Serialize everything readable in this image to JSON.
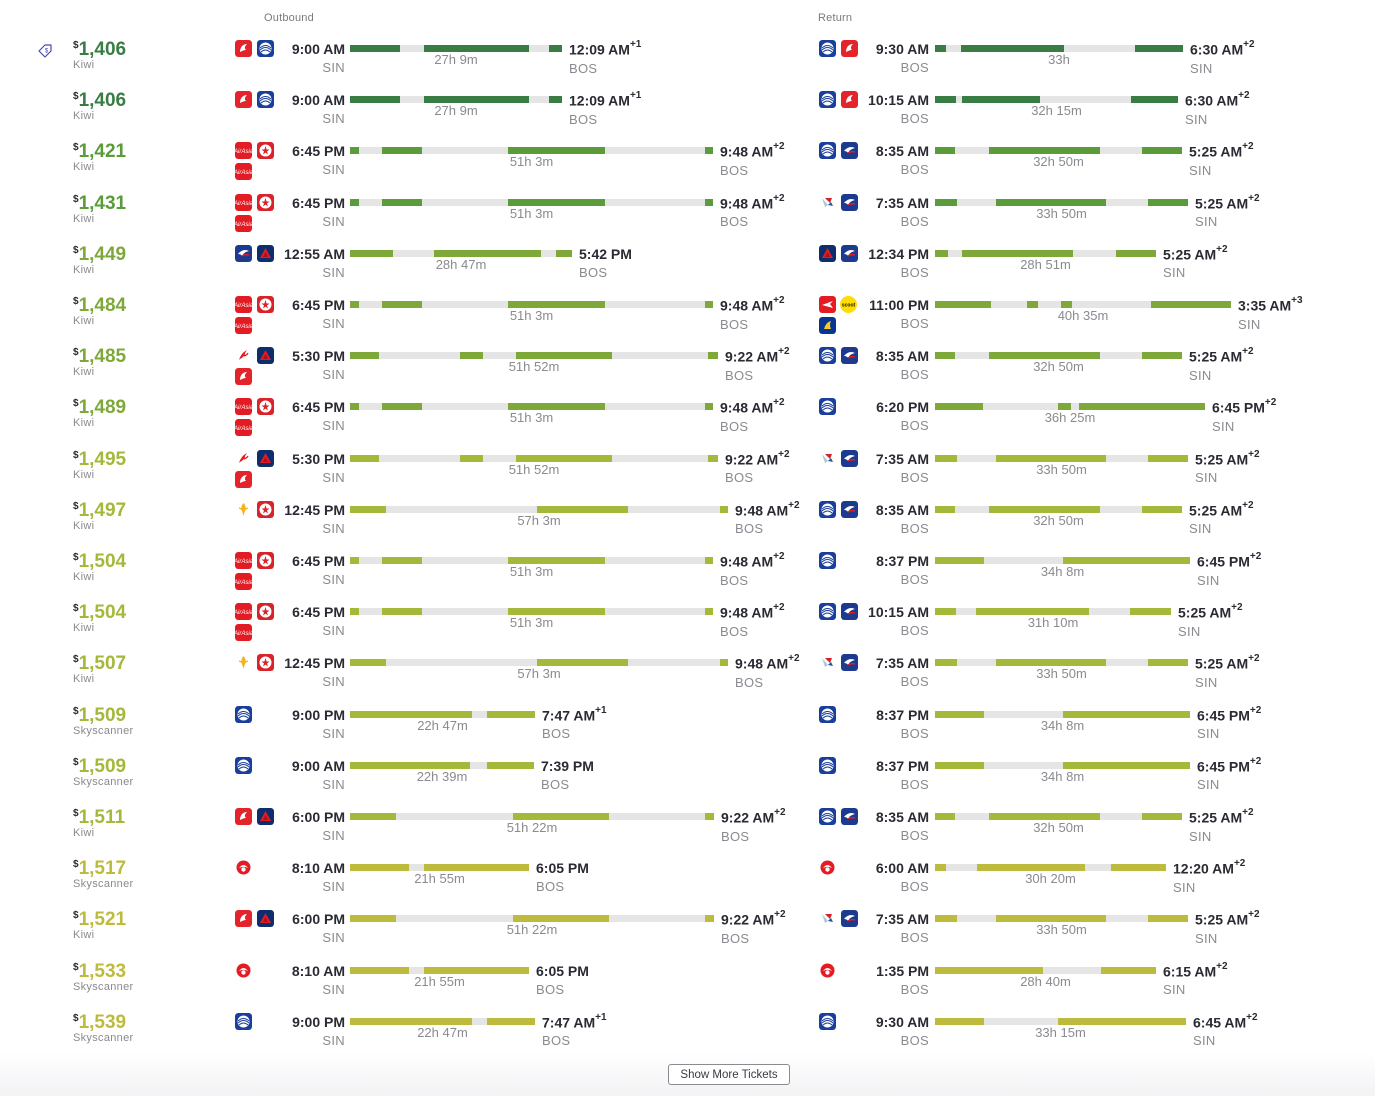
{
  "headers": {
    "outbound": "Outbound",
    "return": "Return"
  },
  "show_more_label": "Show More Tickets",
  "colors": {
    "best": "#3a7d44",
    "good1": "#5a9b3a",
    "good2": "#7ea83a",
    "ok": "#a6b83a",
    "fair": "#bdbb3d",
    "track": "#e5e5e6"
  },
  "rows": [
    {
      "currency": "$",
      "amount": "1,406",
      "provider": "Kiwi",
      "color": "best",
      "deal_icon": true,
      "out": {
        "logos": [
          "air-china",
          "united"
        ],
        "dep": "9:00 AM",
        "from": "SIN",
        "arr": "12:09 AM",
        "plus": "+1",
        "to": "BOS",
        "dur": "27h 9m"
      },
      "ret": {
        "logos": [
          "united",
          "air-china"
        ],
        "dep": "9:30 AM",
        "from": "BOS",
        "arr": "6:30 AM",
        "plus": "+2",
        "to": "SIN",
        "dur": "33h"
      }
    },
    {
      "currency": "$",
      "amount": "1,406",
      "provider": "Kiwi",
      "color": "best",
      "out": {
        "logos": [
          "air-china",
          "united"
        ],
        "dep": "9:00 AM",
        "from": "SIN",
        "arr": "12:09 AM",
        "plus": "+1",
        "to": "BOS",
        "dur": "27h 9m"
      },
      "ret": {
        "logos": [
          "united",
          "air-china"
        ],
        "dep": "10:15 AM",
        "from": "BOS",
        "arr": "6:30 AM",
        "plus": "+2",
        "to": "SIN",
        "dur": "32h 15m"
      }
    },
    {
      "currency": "$",
      "amount": "1,421",
      "provider": "Kiwi",
      "color": "good1",
      "out": {
        "logos": [
          "airasia",
          "air-canada",
          "airasia"
        ],
        "dep": "6:45 PM",
        "from": "SIN",
        "arr": "9:48 AM",
        "plus": "+2",
        "to": "BOS",
        "dur": "51h 3m"
      },
      "ret": {
        "logos": [
          "united",
          "china-eastern"
        ],
        "dep": "8:35 AM",
        "from": "BOS",
        "arr": "5:25 AM",
        "plus": "+2",
        "to": "SIN",
        "dur": "32h 50m"
      }
    },
    {
      "currency": "$",
      "amount": "1,431",
      "provider": "Kiwi",
      "color": "good1",
      "out": {
        "logos": [
          "airasia",
          "air-canada",
          "airasia"
        ],
        "dep": "6:45 PM",
        "from": "SIN",
        "arr": "9:48 AM",
        "plus": "+2",
        "to": "BOS",
        "dur": "51h 3m"
      },
      "ret": {
        "logos": [
          "american",
          "china-eastern"
        ],
        "dep": "7:35 AM",
        "from": "BOS",
        "arr": "5:25 AM",
        "plus": "+2",
        "to": "SIN",
        "dur": "33h 50m"
      }
    },
    {
      "currency": "$",
      "amount": "1,449",
      "provider": "Kiwi",
      "color": "good2",
      "out": {
        "logos": [
          "china-eastern",
          "delta"
        ],
        "dep": "12:55 AM",
        "from": "SIN",
        "arr": "5:42 PM",
        "plus": "",
        "to": "BOS",
        "dur": "28h 47m"
      },
      "ret": {
        "logos": [
          "delta",
          "china-eastern"
        ],
        "dep": "12:34 PM",
        "from": "BOS",
        "arr": "5:25 AM",
        "plus": "+2",
        "to": "SIN",
        "dur": "28h 51m"
      }
    },
    {
      "currency": "$",
      "amount": "1,484",
      "provider": "Kiwi",
      "color": "good2",
      "out": {
        "logos": [
          "airasia",
          "air-canada",
          "airasia"
        ],
        "dep": "6:45 PM",
        "from": "SIN",
        "arr": "9:48 AM",
        "plus": "+2",
        "to": "BOS",
        "dur": "51h 3m"
      },
      "ret": {
        "logos": [
          "jetblue",
          "scoot",
          "ryanair"
        ],
        "scoot_label": "scoot",
        "dep": "11:00 PM",
        "from": "BOS",
        "arr": "3:35 AM",
        "plus": "+3",
        "to": "SIN",
        "dur": "40h 35m"
      }
    },
    {
      "currency": "$",
      "amount": "1,485",
      "provider": "Kiwi",
      "color": "good2",
      "out": {
        "logos": [
          "china-southern",
          "delta",
          "air-china"
        ],
        "dep": "5:30 PM",
        "from": "SIN",
        "arr": "9:22 AM",
        "plus": "+2",
        "to": "BOS",
        "dur": "51h 52m"
      },
      "ret": {
        "logos": [
          "united",
          "china-eastern"
        ],
        "dep": "8:35 AM",
        "from": "BOS",
        "arr": "5:25 AM",
        "plus": "+2",
        "to": "SIN",
        "dur": "32h 50m"
      }
    },
    {
      "currency": "$",
      "amount": "1,489",
      "provider": "Kiwi",
      "color": "good2",
      "out": {
        "logos": [
          "airasia",
          "air-canada",
          "airasia"
        ],
        "dep": "6:45 PM",
        "from": "SIN",
        "arr": "9:48 AM",
        "plus": "+2",
        "to": "BOS",
        "dur": "51h 3m"
      },
      "ret": {
        "logos": [
          "united"
        ],
        "dep": "6:20 PM",
        "from": "BOS",
        "arr": "6:45 PM",
        "plus": "+2",
        "to": "SIN",
        "dur": "36h 25m"
      }
    },
    {
      "currency": "$",
      "amount": "1,495",
      "provider": "Kiwi",
      "color": "ok",
      "out": {
        "logos": [
          "china-southern",
          "delta",
          "air-china"
        ],
        "dep": "5:30 PM",
        "from": "SIN",
        "arr": "9:22 AM",
        "plus": "+2",
        "to": "BOS",
        "dur": "51h 52m"
      },
      "ret": {
        "logos": [
          "american",
          "china-eastern"
        ],
        "dep": "7:35 AM",
        "from": "BOS",
        "arr": "5:25 AM",
        "plus": "+2",
        "to": "SIN",
        "dur": "33h 50m"
      }
    },
    {
      "currency": "$",
      "amount": "1,497",
      "provider": "Kiwi",
      "color": "ok",
      "out": {
        "logos": [
          "singapore",
          "air-canada"
        ],
        "dep": "12:45 PM",
        "from": "SIN",
        "arr": "9:48 AM",
        "plus": "+2",
        "to": "BOS",
        "dur": "57h 3m"
      },
      "ret": {
        "logos": [
          "united",
          "china-eastern"
        ],
        "dep": "8:35 AM",
        "from": "BOS",
        "arr": "5:25 AM",
        "plus": "+2",
        "to": "SIN",
        "dur": "32h 50m"
      }
    },
    {
      "currency": "$",
      "amount": "1,504",
      "provider": "Kiwi",
      "color": "ok",
      "out": {
        "logos": [
          "airasia",
          "air-canada",
          "airasia"
        ],
        "dep": "6:45 PM",
        "from": "SIN",
        "arr": "9:48 AM",
        "plus": "+2",
        "to": "BOS",
        "dur": "51h 3m"
      },
      "ret": {
        "logos": [
          "united"
        ],
        "dep": "8:37 PM",
        "from": "BOS",
        "arr": "6:45 PM",
        "plus": "+2",
        "to": "SIN",
        "dur": "34h 8m"
      }
    },
    {
      "currency": "$",
      "amount": "1,504",
      "provider": "Kiwi",
      "color": "ok",
      "out": {
        "logos": [
          "airasia",
          "air-canada",
          "airasia"
        ],
        "dep": "6:45 PM",
        "from": "SIN",
        "arr": "9:48 AM",
        "plus": "+2",
        "to": "BOS",
        "dur": "51h 3m"
      },
      "ret": {
        "logos": [
          "united",
          "china-eastern"
        ],
        "dep": "10:15 AM",
        "from": "BOS",
        "arr": "5:25 AM",
        "plus": "+2",
        "to": "SIN",
        "dur": "31h 10m"
      }
    },
    {
      "currency": "$",
      "amount": "1,507",
      "provider": "Kiwi",
      "color": "ok",
      "out": {
        "logos": [
          "singapore",
          "air-canada"
        ],
        "dep": "12:45 PM",
        "from": "SIN",
        "arr": "9:48 AM",
        "plus": "+2",
        "to": "BOS",
        "dur": "57h 3m"
      },
      "ret": {
        "logos": [
          "american",
          "china-eastern"
        ],
        "dep": "7:35 AM",
        "from": "BOS",
        "arr": "5:25 AM",
        "plus": "+2",
        "to": "SIN",
        "dur": "33h 50m"
      }
    },
    {
      "currency": "$",
      "amount": "1,509",
      "provider": "Skyscanner",
      "color": "ok",
      "out": {
        "logos": [
          "united"
        ],
        "dep": "9:00 PM",
        "from": "SIN",
        "arr": "7:47 AM",
        "plus": "+1",
        "to": "BOS",
        "dur": "22h 47m"
      },
      "ret": {
        "logos": [
          "united"
        ],
        "dep": "8:37 PM",
        "from": "BOS",
        "arr": "6:45 PM",
        "plus": "+2",
        "to": "SIN",
        "dur": "34h 8m"
      }
    },
    {
      "currency": "$",
      "amount": "1,509",
      "provider": "Skyscanner",
      "color": "ok",
      "out": {
        "logos": [
          "united"
        ],
        "dep": "9:00 AM",
        "from": "SIN",
        "arr": "7:39 PM",
        "plus": "",
        "to": "BOS",
        "dur": "22h 39m"
      },
      "ret": {
        "logos": [
          "united"
        ],
        "dep": "8:37 PM",
        "from": "BOS",
        "arr": "6:45 PM",
        "plus": "+2",
        "to": "SIN",
        "dur": "34h 8m"
      }
    },
    {
      "currency": "$",
      "amount": "1,511",
      "provider": "Kiwi",
      "color": "ok",
      "out": {
        "logos": [
          "air-china",
          "delta"
        ],
        "dep": "6:00 PM",
        "from": "SIN",
        "arr": "9:22 AM",
        "plus": "+2",
        "to": "BOS",
        "dur": "51h 22m"
      },
      "ret": {
        "logos": [
          "united",
          "china-eastern"
        ],
        "dep": "8:35 AM",
        "from": "BOS",
        "arr": "5:25 AM",
        "plus": "+2",
        "to": "SIN",
        "dur": "32h 50m"
      }
    },
    {
      "currency": "$",
      "amount": "1,517",
      "provider": "Skyscanner",
      "color": "fair",
      "out": {
        "logos": [
          "jal"
        ],
        "dep": "8:10 AM",
        "from": "SIN",
        "arr": "6:05 PM",
        "plus": "",
        "to": "BOS",
        "dur": "21h 55m"
      },
      "ret": {
        "logos": [
          "jal"
        ],
        "dep": "6:00 AM",
        "from": "BOS",
        "arr": "12:20 AM",
        "plus": "+2",
        "to": "SIN",
        "dur": "30h 20m"
      }
    },
    {
      "currency": "$",
      "amount": "1,521",
      "provider": "Kiwi",
      "color": "fair",
      "out": {
        "logos": [
          "air-china",
          "delta"
        ],
        "dep": "6:00 PM",
        "from": "SIN",
        "arr": "9:22 AM",
        "plus": "+2",
        "to": "BOS",
        "dur": "51h 22m"
      },
      "ret": {
        "logos": [
          "american",
          "china-eastern"
        ],
        "dep": "7:35 AM",
        "from": "BOS",
        "arr": "5:25 AM",
        "plus": "+2",
        "to": "SIN",
        "dur": "33h 50m"
      }
    },
    {
      "currency": "$",
      "amount": "1,533",
      "provider": "Skyscanner",
      "color": "fair",
      "out": {
        "logos": [
          "jal"
        ],
        "dep": "8:10 AM",
        "from": "SIN",
        "arr": "6:05 PM",
        "plus": "",
        "to": "BOS",
        "dur": "21h 55m"
      },
      "ret": {
        "logos": [
          "jal"
        ],
        "dep": "1:35 PM",
        "from": "BOS",
        "arr": "6:15 AM",
        "plus": "+2",
        "to": "SIN",
        "dur": "28h 40m"
      }
    },
    {
      "currency": "$",
      "amount": "1,539",
      "provider": "Skyscanner",
      "color": "fair",
      "out": {
        "logos": [
          "united"
        ],
        "dep": "9:00 PM",
        "from": "SIN",
        "arr": "7:47 AM",
        "plus": "+1",
        "to": "BOS",
        "dur": "22h 47m"
      },
      "ret": {
        "logos": [
          "united"
        ],
        "dep": "9:30 AM",
        "from": "BOS",
        "arr": "6:45 AM",
        "plus": "+2",
        "to": "SIN",
        "dur": "33h 15m"
      }
    }
  ]
}
